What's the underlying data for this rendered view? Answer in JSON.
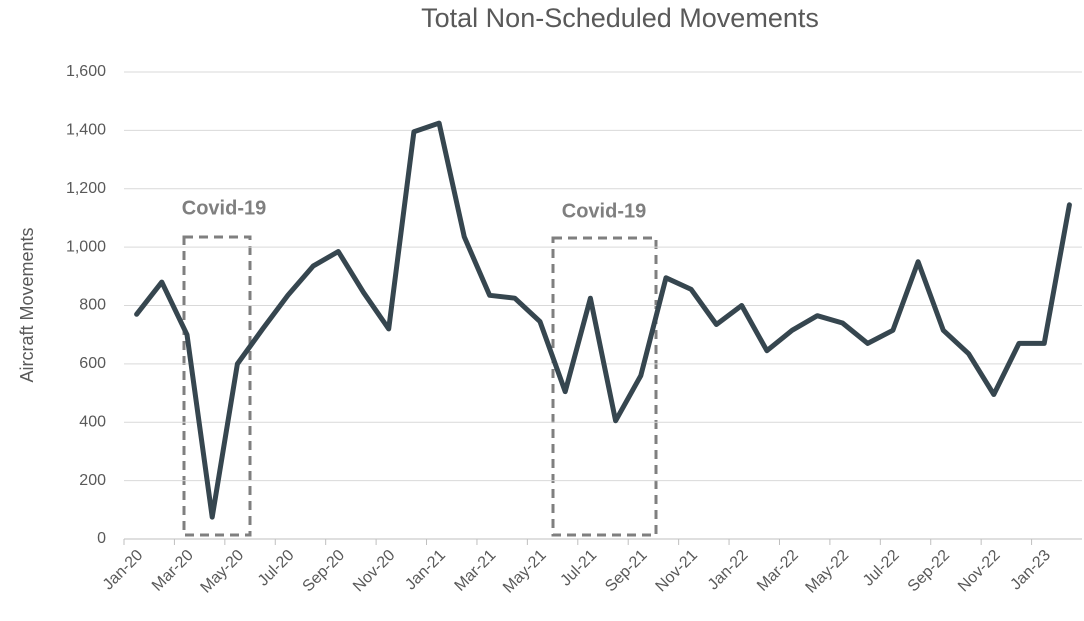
{
  "chart_data": {
    "type": "line",
    "title": "Total Non-Scheduled Movements",
    "y_label": "Aircraft Movements",
    "annotations": [
      {
        "text": "Covid-19"
      },
      {
        "text": "Covid-19"
      }
    ],
    "categories": [
      "Jan-20",
      null,
      "Mar-20",
      null,
      "May-20",
      null,
      "Jul-20",
      null,
      "Sep-20",
      null,
      "Nov-20",
      null,
      "Jan-21",
      null,
      "Mar-21",
      null,
      "May-21",
      null,
      "Jul-21",
      null,
      "Sep-21",
      null,
      "Nov-21",
      null,
      "Jan-22",
      null,
      "Mar-22",
      null,
      "May-22",
      null,
      "Jul-22",
      null,
      "Sep-22",
      null,
      "Nov-22",
      null,
      "Jan-23",
      null
    ],
    "values": [
      770,
      880,
      700,
      75,
      600,
      720,
      835,
      935,
      985,
      845,
      720,
      1395,
      1425,
      1035,
      835,
      825,
      745,
      505,
      825,
      405,
      560,
      895,
      855,
      735,
      800,
      645,
      715,
      765,
      740,
      670,
      715,
      950,
      715,
      635,
      495,
      670,
      670,
      1145
    ],
    "color": "#36464f",
    "ylim": [
      0,
      1600
    ],
    "yticks": [
      0,
      200,
      400,
      600,
      800,
      {
        "value": 1000,
        "label": "1,000"
      },
      {
        "value": 1200,
        "label": "1,200"
      },
      {
        "value": 1400,
        "label": "1,400"
      },
      {
        "value": 1600,
        "label": "1,600"
      }
    ],
    "grid": true
  }
}
